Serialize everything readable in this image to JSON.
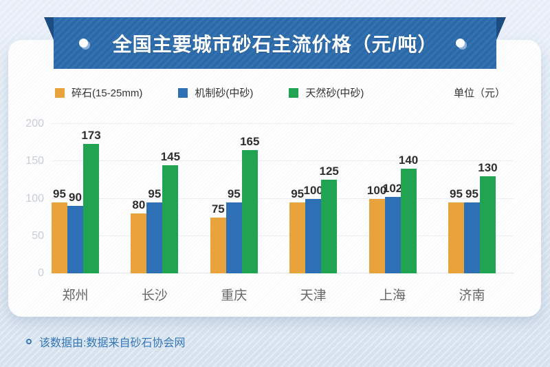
{
  "banner": {
    "title": "全国主要城市砂石主流价格（元/吨）"
  },
  "legend": {
    "unit_label": "单位（元）"
  },
  "chart_data": {
    "type": "bar",
    "title": "全国主要城市砂石主流价格（元/吨）",
    "categories": [
      "郑州",
      "长沙",
      "重庆",
      "天津",
      "上海",
      "济南"
    ],
    "series": [
      {
        "name": "碎石(15-25mm)",
        "color": "#e8a33d",
        "values": [
          95,
          80,
          75,
          95,
          100,
          95
        ]
      },
      {
        "name": "机制砂(中砂)",
        "color": "#2d70b5",
        "values": [
          90,
          95,
          95,
          100,
          102,
          95
        ]
      },
      {
        "name": "天然砂(中砂)",
        "color": "#21a452",
        "values": [
          173,
          145,
          165,
          125,
          140,
          130
        ]
      }
    ],
    "xlabel": "",
    "ylabel": "",
    "ylim": [
      0,
      200
    ],
    "y_ticks": [
      0,
      50,
      100,
      150,
      200
    ],
    "grid": true,
    "legend_position": "top",
    "unit": "元"
  },
  "footer": {
    "note": "该数据由:数据来自砂石协会网"
  },
  "colors": {
    "ribbon": "#2b6aaa",
    "ribbon_fold": "#1c4c82",
    "card": "#ffffff",
    "background": "#dde7f2",
    "footer_text": "#3276b8",
    "axis_tick": "#c9cdd2",
    "value_label": "#2e2e2e",
    "category_label": "#666666"
  }
}
